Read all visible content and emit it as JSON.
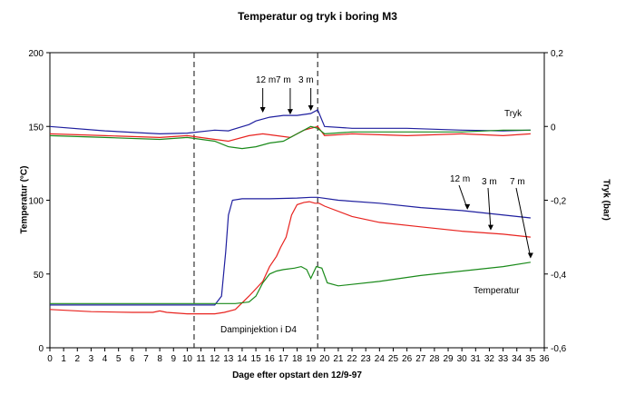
{
  "chart_data": {
    "type": "line",
    "title": "Temperatur og tryk i boring M3",
    "xlabel": "Dage efter opstart den 12/9-97",
    "ylabel_left": "Temperatur (°C)",
    "ylabel_right": "Tryk (bar)",
    "xlim": [
      0,
      36
    ],
    "ylim_left": [
      0,
      200
    ],
    "ylim_right": [
      -0.6,
      0.2
    ],
    "x_ticks": [
      "0",
      "1",
      "2",
      "3",
      "4",
      "5",
      "6",
      "7",
      "8",
      "9",
      "10",
      "11",
      "12",
      "13",
      "14",
      "15",
      "16",
      "17",
      "18",
      "19",
      "20",
      "21",
      "22",
      "23",
      "24",
      "25",
      "26",
      "27",
      "28",
      "29",
      "30",
      "31",
      "32",
      "33",
      "34",
      "35",
      "36"
    ],
    "y_ticks_left": [
      "0",
      "50",
      "100",
      "150",
      "200"
    ],
    "y_ticks_right": [
      "-0,6",
      "-0,4",
      "-0,2",
      "0",
      "0,2"
    ],
    "grid": false,
    "vlines_x": [
      10.5,
      19.5
    ],
    "annotations": {
      "tryk": "Tryk",
      "temperatur": "Temperatur",
      "damp": "Dampinjektion i D4",
      "top_12m": "12 m",
      "top_7m": "7 m",
      "top_3m": "3 m",
      "right_12m": "12 m",
      "right_3m": "3 m",
      "right_7m": "7 m"
    },
    "colors": {
      "m12": "#1f1f9f",
      "m3": "#e8231f",
      "m7": "#1a8a1a"
    },
    "temperature_series": [
      {
        "color": "m12",
        "x": [
          0,
          12,
          12.5,
          12.8,
          13,
          13.3,
          14,
          16,
          18,
          19,
          19.5,
          21,
          24,
          27,
          30,
          32,
          35
        ],
        "y": [
          29,
          29,
          35,
          65,
          90,
          100,
          101,
          101,
          101.5,
          102,
          102,
          100,
          98,
          95,
          93,
          91,
          88
        ]
      },
      {
        "color": "m3",
        "x": [
          0,
          3,
          6,
          7.5,
          8,
          8.5,
          10,
          12,
          12.7,
          13.5,
          14.5,
          15.5,
          16,
          16.5,
          16.8,
          17.2,
          17.6,
          18,
          18.5,
          18.9,
          19.3,
          19.6,
          20,
          22,
          24,
          27,
          30,
          33,
          35
        ],
        "y": [
          26,
          24.5,
          24,
          24,
          25,
          24,
          23,
          23,
          24,
          26,
          35,
          45,
          55,
          62,
          68,
          75,
          90,
          97,
          98.5,
          99,
          98,
          98,
          96,
          89,
          85,
          82,
          79,
          77,
          75
        ]
      },
      {
        "color": "m7",
        "x": [
          0,
          10,
          12,
          13.5,
          14.5,
          15,
          15.5,
          16,
          16.5,
          17,
          17.8,
          18.3,
          18.7,
          19,
          19.4,
          19.8,
          20.2,
          21,
          24,
          27,
          30,
          33,
          35
        ],
        "y": [
          30,
          30,
          30,
          30,
          31,
          35,
          44,
          50,
          52,
          53,
          54,
          55,
          53,
          47,
          55,
          54,
          44,
          42,
          45,
          49,
          52,
          55,
          58
        ]
      }
    ],
    "pressure_series": [
      {
        "color": "m12",
        "x": [
          0,
          4,
          8,
          10,
          12,
          13,
          14.5,
          15,
          16,
          17,
          18,
          19,
          19.5,
          20,
          22,
          26,
          30,
          33,
          35
        ],
        "y": [
          0,
          -0.012,
          -0.02,
          -0.018,
          -0.01,
          -0.012,
          0.005,
          0.015,
          0.025,
          0.03,
          0.03,
          0.035,
          0.045,
          0,
          -0.005,
          -0.005,
          -0.01,
          -0.012,
          -0.01
        ]
      },
      {
        "color": "m3",
        "x": [
          0,
          4,
          8,
          10,
          12,
          13,
          14.5,
          15.5,
          16.5,
          17.5,
          18.5,
          19.5,
          20,
          22,
          26,
          30,
          33,
          35
        ],
        "y": [
          -0.02,
          -0.025,
          -0.03,
          -0.025,
          -0.035,
          -0.04,
          -0.025,
          -0.02,
          -0.025,
          -0.03,
          -0.01,
          0,
          -0.025,
          -0.02,
          -0.025,
          -0.02,
          -0.025,
          -0.02
        ]
      },
      {
        "color": "m7",
        "x": [
          0,
          4,
          8,
          10,
          12,
          13,
          14,
          15,
          16,
          17,
          18,
          19,
          19.5,
          20,
          22,
          26,
          30,
          33,
          35
        ],
        "y": [
          -0.025,
          -0.03,
          -0.035,
          -0.03,
          -0.04,
          -0.055,
          -0.06,
          -0.055,
          -0.045,
          -0.04,
          -0.02,
          0,
          -0.005,
          -0.02,
          -0.015,
          -0.015,
          -0.015,
          -0.01,
          -0.01
        ]
      }
    ]
  }
}
